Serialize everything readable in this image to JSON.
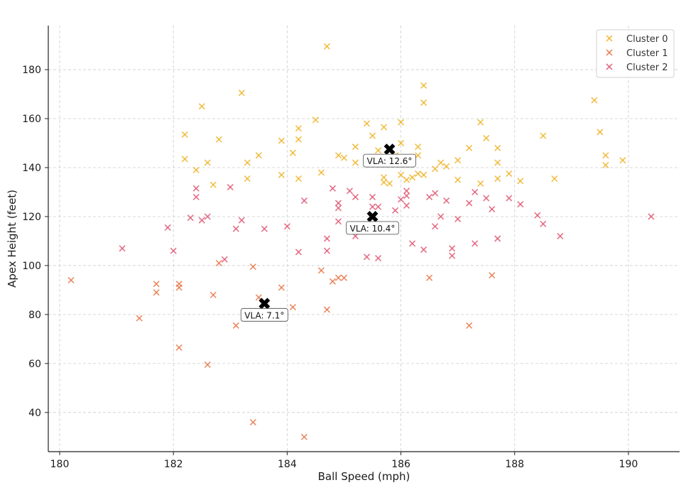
{
  "chart_data": {
    "type": "scatter",
    "title": "",
    "xlabel": "Ball Speed (mph)",
    "ylabel": "Apex Height (feet)",
    "xlim": [
      179.8,
      190.9
    ],
    "ylim": [
      24,
      198
    ],
    "xticks": [
      180,
      182,
      184,
      186,
      188,
      190
    ],
    "yticks": [
      40,
      60,
      80,
      100,
      120,
      140,
      160,
      180
    ],
    "grid": true,
    "legend_position": "top-right",
    "series": [
      {
        "name": "Cluster 0",
        "color": "#f0b429",
        "points": [
          [
            184.7,
            189.5
          ],
          [
            183.2,
            170.5
          ],
          [
            186.4,
            173.5
          ],
          [
            182.5,
            165
          ],
          [
            186.4,
            166.5
          ],
          [
            189.4,
            167.5
          ],
          [
            184.5,
            159.5
          ],
          [
            185.4,
            158
          ],
          [
            185.7,
            156.5
          ],
          [
            186,
            158.5
          ],
          [
            182.2,
            153.5
          ],
          [
            185.5,
            153
          ],
          [
            187.4,
            158.5
          ],
          [
            182.8,
            151.5
          ],
          [
            183.9,
            151
          ],
          [
            184.2,
            151.5
          ],
          [
            184.2,
            156
          ],
          [
            188.5,
            153
          ],
          [
            189.5,
            154.5
          ],
          [
            187.5,
            152
          ],
          [
            185.2,
            148.5
          ],
          [
            185.6,
            147
          ],
          [
            186,
            150
          ],
          [
            186.3,
            148.5
          ],
          [
            187.2,
            148
          ],
          [
            187.7,
            148
          ],
          [
            185.9,
            145
          ],
          [
            189.6,
            145
          ],
          [
            182.2,
            143.5
          ],
          [
            182.6,
            142
          ],
          [
            183.3,
            142
          ],
          [
            183.5,
            145
          ],
          [
            184.1,
            146
          ],
          [
            184.9,
            145
          ],
          [
            185,
            144
          ],
          [
            185.2,
            142
          ],
          [
            186.3,
            145
          ],
          [
            186.7,
            142
          ],
          [
            186.8,
            140.5
          ],
          [
            187,
            143
          ],
          [
            187.7,
            142
          ],
          [
            189.9,
            143
          ],
          [
            189.6,
            141
          ],
          [
            182.4,
            139
          ],
          [
            183.3,
            135.5
          ],
          [
            183.9,
            137
          ],
          [
            184.2,
            135.5
          ],
          [
            184.6,
            138
          ],
          [
            185.7,
            136
          ],
          [
            185.7,
            134
          ],
          [
            185.8,
            133.5
          ],
          [
            186,
            137
          ],
          [
            186.1,
            135
          ],
          [
            186.2,
            136
          ],
          [
            186.3,
            137.5
          ],
          [
            186.4,
            137
          ],
          [
            186.6,
            139.5
          ],
          [
            187,
            135
          ],
          [
            187.4,
            133.5
          ],
          [
            187.7,
            135.5
          ],
          [
            187.9,
            137.5
          ],
          [
            188.1,
            134.5
          ],
          [
            188.7,
            135.5
          ],
          [
            182.7,
            133
          ]
        ]
      },
      {
        "name": "Cluster 1",
        "color": "#e8784a",
        "points": [
          [
            180.2,
            94
          ],
          [
            181.4,
            78.5
          ],
          [
            181.7,
            92.5
          ],
          [
            181.7,
            89
          ],
          [
            182.1,
            91
          ],
          [
            182.1,
            92.5
          ],
          [
            182.1,
            66.5
          ],
          [
            182.6,
            59.5
          ],
          [
            182.8,
            101
          ],
          [
            182.7,
            88
          ],
          [
            183.1,
            75.5
          ],
          [
            183.4,
            99.5
          ],
          [
            183.5,
            87
          ],
          [
            183.4,
            36
          ],
          [
            183.9,
            91
          ],
          [
            184.1,
            83
          ],
          [
            184.3,
            30
          ],
          [
            184.6,
            98
          ],
          [
            184.7,
            82
          ],
          [
            184.8,
            93.5
          ],
          [
            184.9,
            95
          ],
          [
            185,
            95
          ],
          [
            186.5,
            95
          ],
          [
            187.2,
            75.5
          ],
          [
            187.6,
            96
          ]
        ]
      },
      {
        "name": "Cluster 2",
        "color": "#e05a74",
        "points": [
          [
            181.1,
            107
          ],
          [
            181.9,
            115.5
          ],
          [
            182,
            106
          ],
          [
            182.3,
            119.5
          ],
          [
            182.5,
            118.5
          ],
          [
            182.4,
            128
          ],
          [
            182.4,
            131.5
          ],
          [
            182.6,
            120
          ],
          [
            182.9,
            102.5
          ],
          [
            183,
            132
          ],
          [
            183.1,
            115
          ],
          [
            183.2,
            118.5
          ],
          [
            183.6,
            115
          ],
          [
            184,
            116
          ],
          [
            184.2,
            105.5
          ],
          [
            184.3,
            126.5
          ],
          [
            184.7,
            111
          ],
          [
            184.7,
            106
          ],
          [
            184.8,
            131.5
          ],
          [
            184.9,
            125.5
          ],
          [
            184.9,
            123.5
          ],
          [
            184.9,
            118
          ],
          [
            185.1,
            130.5
          ],
          [
            185.2,
            128
          ],
          [
            185.2,
            112
          ],
          [
            185.4,
            103.5
          ],
          [
            185.5,
            128
          ],
          [
            185.5,
            124
          ],
          [
            185.6,
            124
          ],
          [
            185.6,
            103
          ],
          [
            185.9,
            116.5
          ],
          [
            185.9,
            122.5
          ],
          [
            186,
            127
          ],
          [
            186.1,
            128.5
          ],
          [
            186.1,
            130.5
          ],
          [
            186.1,
            124.5
          ],
          [
            186.2,
            109
          ],
          [
            186.4,
            106.5
          ],
          [
            186.5,
            128
          ],
          [
            186.6,
            129.5
          ],
          [
            186.6,
            116
          ],
          [
            186.7,
            120
          ],
          [
            186.8,
            126.5
          ],
          [
            186.9,
            104
          ],
          [
            186.9,
            107
          ],
          [
            187,
            119
          ],
          [
            187.2,
            125.5
          ],
          [
            187.3,
            130
          ],
          [
            187.3,
            109
          ],
          [
            187.5,
            127.5
          ],
          [
            187.6,
            123
          ],
          [
            187.7,
            111
          ],
          [
            187.9,
            127.5
          ],
          [
            188.1,
            125
          ],
          [
            188.4,
            120.5
          ],
          [
            188.5,
            117
          ],
          [
            188.8,
            112
          ],
          [
            190.4,
            120
          ]
        ]
      }
    ],
    "centroids": [
      {
        "x": 185.8,
        "y": 147.5,
        "label": "VLA: 12.6°"
      },
      {
        "x": 185.5,
        "y": 120,
        "label": "VLA: 10.4°"
      },
      {
        "x": 183.6,
        "y": 84.5,
        "label": "VLA: 7.1°"
      }
    ]
  }
}
